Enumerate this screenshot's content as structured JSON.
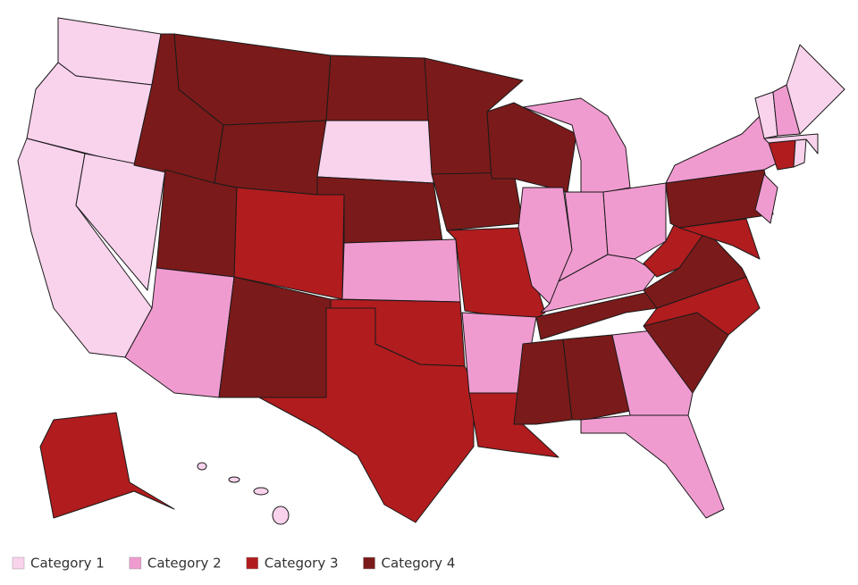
{
  "legend": [
    {
      "label": "Category 1",
      "color": "#f9d2ec"
    },
    {
      "label": "Category 2",
      "color": "#f09bd0"
    },
    {
      "label": "Category 3",
      "color": "#b11c1e"
    },
    {
      "label": "Category 4",
      "color": "#7b1a1a"
    }
  ]
}
